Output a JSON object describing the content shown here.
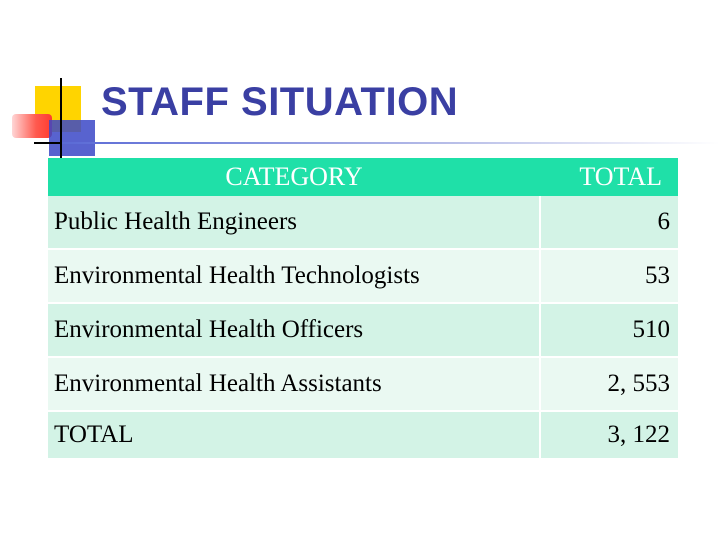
{
  "slide": {
    "title": "STAFF SITUATION",
    "table": {
      "headers": {
        "category": "CATEGORY",
        "total": "TOTAL"
      },
      "rows": [
        {
          "category": "Public Health Engineers",
          "total": "6"
        },
        {
          "category": "Environmental Health Technologists",
          "total": "53"
        },
        {
          "category": "Environmental Health Officers",
          "total": "510"
        },
        {
          "category": "Environmental Health Assistants",
          "total": "2, 553"
        },
        {
          "category": "TOTAL",
          "total": "3, 122"
        }
      ]
    }
  },
  "colors": {
    "title": "#3a3fa3",
    "header_bg": "#1fe0a8",
    "row_odd": "#d3f3e6",
    "row_even": "#eaf9f2"
  }
}
